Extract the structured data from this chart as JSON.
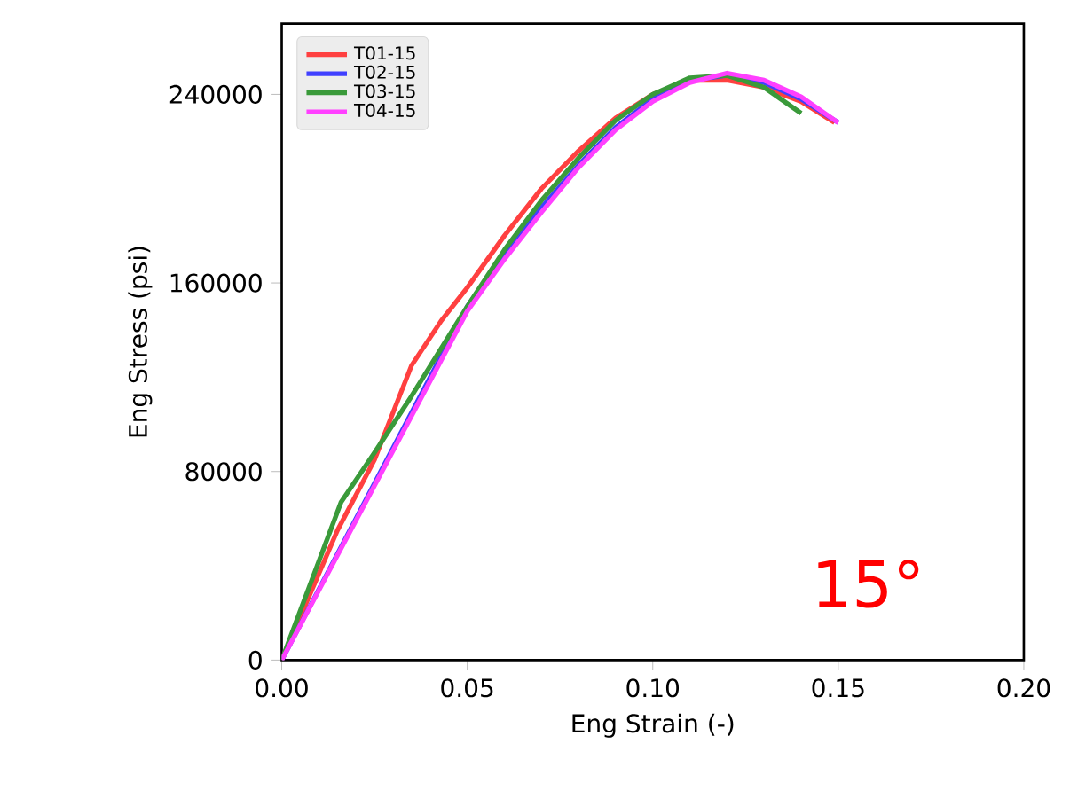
{
  "chart_data": {
    "type": "line",
    "xlabel": "Eng Strain (-)",
    "ylabel": "Eng Stress (psi)",
    "xlim": [
      0,
      0.2
    ],
    "ylim": [
      0,
      270000
    ],
    "xticks": [
      {
        "value": 0,
        "label": "0.00"
      },
      0.05,
      {
        "value": 0.1,
        "label": "0.10"
      },
      0.15,
      {
        "value": 0.2,
        "label": "0.20"
      }
    ],
    "yticks": [
      0,
      80000,
      160000,
      240000
    ],
    "legend": "top left",
    "marker": "none",
    "line_style": "solid",
    "annotations": [
      "15°"
    ],
    "series": [
      {
        "name": "T01-15",
        "color": "#ff4040",
        "x": [
          0,
          0.015,
          0.025,
          0.035,
          0.043,
          0.05,
          0.06,
          0.07,
          0.08,
          0.09,
          0.1,
          0.11,
          0.12,
          0.13,
          0.14,
          0.149
        ],
        "values": [
          0,
          55000,
          85000,
          125000,
          144000,
          158000,
          180000,
          200000,
          216000,
          230000,
          240000,
          246000,
          246000,
          243000,
          237000,
          228000
        ]
      },
      {
        "name": "T02-15",
        "color": "#4040ff",
        "x": [
          0,
          0.05,
          0.06,
          0.07,
          0.08,
          0.09,
          0.1,
          0.11,
          0.12,
          0.13,
          0.14,
          0.15
        ],
        "values": [
          0,
          150000,
          172000,
          192000,
          210000,
          226000,
          238000,
          246000,
          248000,
          245000,
          238000,
          228000
        ]
      },
      {
        "name": "T03-15",
        "color": "#3a9a3a",
        "x": [
          0,
          0.016,
          0.025,
          0.035,
          0.05,
          0.06,
          0.07,
          0.08,
          0.09,
          0.1,
          0.11,
          0.12,
          0.13,
          0.14
        ],
        "values": [
          0,
          67000,
          88000,
          112000,
          150000,
          174000,
          195000,
          213000,
          229000,
          240000,
          247000,
          248000,
          243000,
          232000
        ]
      },
      {
        "name": "T04-15",
        "color": "#ff40ff",
        "x": [
          0,
          0.05,
          0.06,
          0.07,
          0.08,
          0.09,
          0.1,
          0.11,
          0.12,
          0.13,
          0.14,
          0.15
        ],
        "values": [
          0,
          148000,
          170000,
          190000,
          209000,
          225000,
          237000,
          245000,
          249000,
          246000,
          239000,
          228000
        ]
      }
    ]
  }
}
